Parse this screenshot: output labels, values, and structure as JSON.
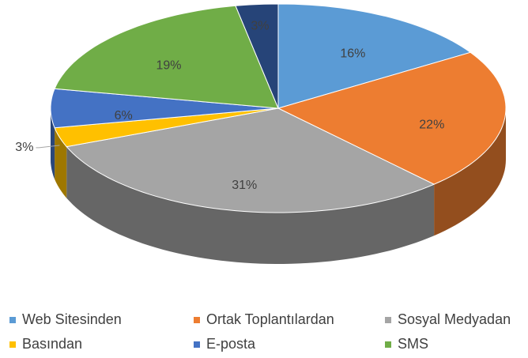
{
  "chart_data": {
    "type": "pie3d",
    "categories": [
      "Web Sitesinden",
      "Ortak Toplantılardan",
      "Sosyal Medyadan",
      "Basından",
      "E-posta",
      "SMS",
      null
    ],
    "values": [
      16,
      22,
      31,
      3,
      6,
      19,
      3
    ],
    "value_labels": [
      "16%",
      "22%",
      "31%",
      "3%",
      "6%",
      "19%",
      "3%"
    ],
    "colors": [
      "#5b9bd5",
      "#ed7d31",
      "#a5a5a5",
      "#ffc000",
      "#4472c4",
      "#70ad47",
      "#264478"
    ],
    "legend": "bottom"
  }
}
